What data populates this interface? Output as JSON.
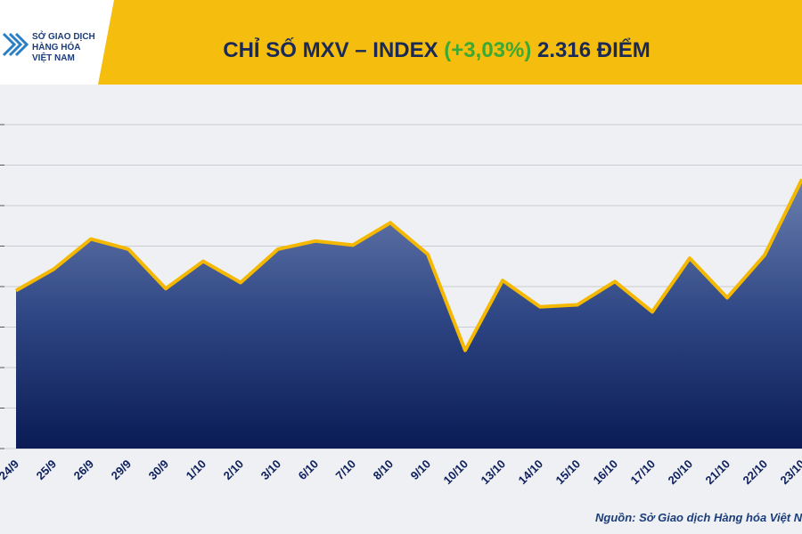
{
  "chart_data": {
    "type": "area",
    "title": {
      "part1": "CHỈ SỐ MXV – INDEX",
      "change": "(+3,03%)",
      "part2": "2.316 ĐIỂM"
    },
    "logo": [
      "SỞ GIAO DỊCH",
      "HÀNG HÓA",
      "VIỆT NAM"
    ],
    "source": "Nguồn: Sở Giao dịch Hàng hóa Việt Nam",
    "categories": [
      "24/9",
      "25/9",
      "26/9",
      "29/9",
      "30/9",
      "1/10",
      "2/10",
      "3/10",
      "6/10",
      "7/10",
      "8/10",
      "9/10",
      "10/10",
      "13/10",
      "14/10",
      "15/10",
      "16/10",
      "17/10",
      "20/10",
      "21/10",
      "22/10",
      "23/10"
    ],
    "values": [
      2206,
      2227,
      2257,
      2247,
      2208,
      2235,
      2214,
      2247,
      2255,
      2251,
      2273,
      2242,
      2147,
      2216,
      2190,
      2192,
      2215,
      2185,
      2238,
      2199,
      2241,
      2316
    ],
    "color": "#f5b800",
    "change_color": "#3aa935",
    "ylim": [
      2050,
      2370
    ],
    "yticks": [
      2050,
      2090,
      2130,
      2170,
      2210,
      2250,
      2290,
      2330,
      2370
    ],
    "grid": true
  }
}
